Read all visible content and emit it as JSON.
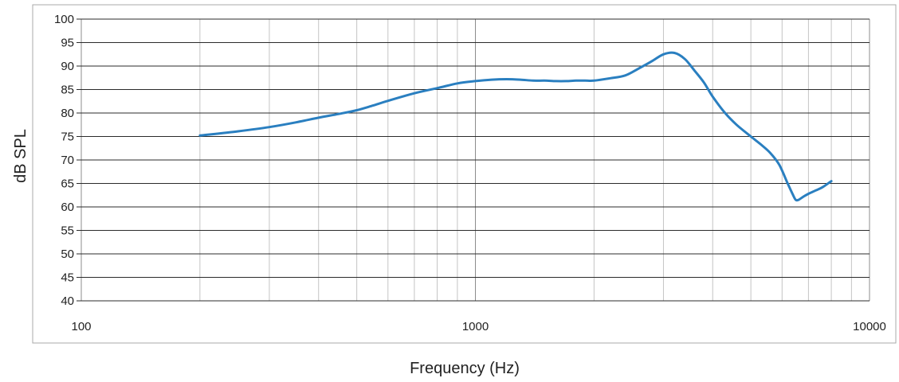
{
  "chart_data": {
    "type": "line",
    "title": "",
    "xlabel": "Frequency (Hz)",
    "ylabel": "dB SPL",
    "x_scale": "log",
    "xlim": [
      100,
      10000
    ],
    "ylim": [
      40,
      100
    ],
    "y_ticks": [
      40,
      45,
      50,
      55,
      60,
      65,
      70,
      75,
      80,
      85,
      90,
      95,
      100
    ],
    "x_ticks": [
      100,
      1000,
      10000
    ],
    "x_tick_labels": [
      "100",
      "1000",
      "10000"
    ],
    "grid": true,
    "legend": "none",
    "series": [
      {
        "color": "#2a7fc0",
        "x": [
          200,
          250,
          300,
          350,
          400,
          450,
          500,
          550,
          600,
          700,
          800,
          900,
          1000,
          1100,
          1200,
          1300,
          1400,
          1500,
          1600,
          1700,
          1800,
          1900,
          2000,
          2200,
          2400,
          2600,
          2800,
          3000,
          3200,
          3400,
          3600,
          3800,
          4000,
          4300,
          4600,
          5000,
          5300,
          5600,
          5900,
          6200,
          6400,
          6500,
          6600,
          6800,
          7000,
          7300,
          7600,
          8000
        ],
        "y": [
          75.2,
          76.1,
          77.0,
          78.0,
          79.0,
          79.8,
          80.6,
          81.6,
          82.6,
          84.2,
          85.3,
          86.3,
          86.8,
          87.1,
          87.2,
          87.1,
          86.9,
          86.9,
          86.8,
          86.8,
          86.9,
          86.9,
          86.9,
          87.4,
          88.0,
          89.5,
          91.0,
          92.5,
          92.8,
          91.5,
          89.0,
          86.5,
          83.5,
          80.0,
          77.5,
          75.0,
          73.3,
          71.5,
          69.0,
          65.0,
          62.5,
          61.5,
          61.5,
          62.2,
          62.8,
          63.5,
          64.2,
          65.5
        ]
      }
    ]
  }
}
